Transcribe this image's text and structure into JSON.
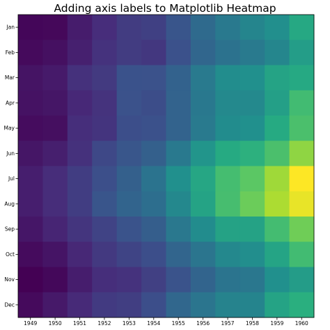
{
  "chart_data": {
    "type": "heatmap",
    "title": "Adding axis labels to Matplotlib Heatmap",
    "x": [
      "1949",
      "1950",
      "1951",
      "1952",
      "1953",
      "1954",
      "1955",
      "1956",
      "1957",
      "1958",
      "1959",
      "1960"
    ],
    "y": [
      "Jan",
      "Feb",
      "Mar",
      "Apr",
      "May",
      "Jun",
      "Jul",
      "Aug",
      "Sep",
      "Oct",
      "Nov",
      "Dec"
    ],
    "colormap": "viridis",
    "grid": false,
    "values": [
      [
        112,
        115,
        145,
        171,
        196,
        204,
        242,
        284,
        315,
        340,
        360,
        417
      ],
      [
        118,
        126,
        150,
        180,
        196,
        188,
        233,
        277,
        301,
        318,
        342,
        391
      ],
      [
        132,
        141,
        178,
        193,
        236,
        235,
        267,
        317,
        356,
        362,
        406,
        419
      ],
      [
        129,
        135,
        163,
        181,
        235,
        227,
        269,
        313,
        348,
        348,
        396,
        461
      ],
      [
        121,
        125,
        172,
        183,
        229,
        234,
        270,
        318,
        355,
        363,
        420,
        472
      ],
      [
        135,
        149,
        178,
        218,
        243,
        264,
        315,
        374,
        422,
        435,
        472,
        535
      ],
      [
        148,
        170,
        199,
        230,
        264,
        302,
        364,
        413,
        465,
        491,
        548,
        622
      ],
      [
        148,
        170,
        199,
        242,
        272,
        293,
        347,
        405,
        467,
        505,
        559,
        606
      ],
      [
        136,
        158,
        184,
        209,
        237,
        259,
        312,
        355,
        404,
        404,
        463,
        508
      ],
      [
        119,
        133,
        162,
        191,
        211,
        229,
        274,
        306,
        347,
        359,
        407,
        461
      ],
      [
        104,
        114,
        146,
        172,
        180,
        203,
        237,
        271,
        305,
        310,
        362,
        390
      ],
      [
        118,
        140,
        166,
        194,
        201,
        229,
        278,
        306,
        336,
        337,
        405,
        432
      ]
    ],
    "vmin": 104,
    "vmax": 622
  }
}
